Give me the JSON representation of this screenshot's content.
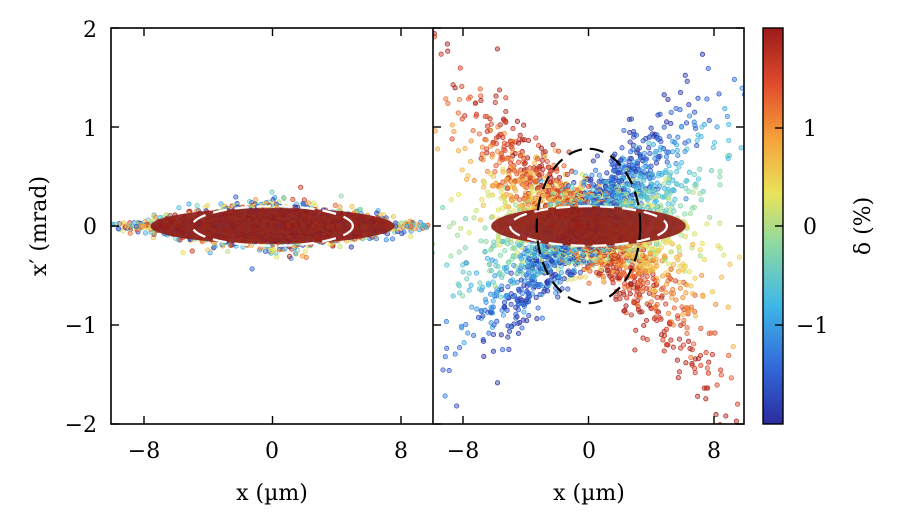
{
  "chart_data": [
    {
      "type": "scatter",
      "panel": "left",
      "xlabel": "x (µm)",
      "ylabel": "x′ (mrad)",
      "xlim": [
        -10,
        10
      ],
      "ylim": [
        -2,
        2
      ],
      "xticks": [
        -8,
        0,
        8
      ],
      "xtick_labels": [
        "−8",
        "0",
        "8"
      ],
      "yticks": [
        -2,
        -1,
        0,
        1,
        2
      ],
      "ytick_labels": [
        "−2",
        "−1",
        "0",
        "1",
        "2"
      ],
      "description_of_distribution": {
        "x_spread_um": 10,
        "xprime_spread_mrad": 0.35,
        "correlation_with_delta": "none (mixed colors)"
      },
      "ellipses": [
        {
          "center": [
            0,
            0
          ],
          "semi_x_um": 5,
          "semi_y_mrad": 0.2,
          "color": "#ffffff",
          "style": "dashed"
        }
      ]
    },
    {
      "type": "scatter",
      "panel": "right",
      "xlabel": "x (µm)",
      "xlim": [
        -10,
        10
      ],
      "ylim": [
        -2,
        2
      ],
      "xticks": [
        -8,
        0,
        8
      ],
      "xtick_labels": [
        "−8",
        "0",
        "8"
      ],
      "description_of_distribution": {
        "x_spread_um": 10,
        "xprime_spread_mrad": 1.8,
        "correlation_with_delta": "x′ sign and tilt vary with δ (chromatic)"
      },
      "ellipses": [
        {
          "center": [
            0,
            0
          ],
          "semi_x_um": 5,
          "semi_y_mrad": 0.2,
          "color": "#ffffff",
          "style": "dashed"
        },
        {
          "center": [
            0,
            0
          ],
          "semi_x_um": 3.3,
          "semi_y_mrad": 0.78,
          "color": "#000000",
          "style": "dashed"
        }
      ]
    }
  ],
  "colorbar": {
    "label": "δ (%)",
    "range": [
      -2,
      2
    ],
    "ticks": [
      1,
      0,
      -1
    ],
    "tick_labels": [
      "1",
      "0",
      "−1"
    ],
    "colormap": "jet",
    "colors": [
      "#2b2c9e",
      "#3267d8",
      "#3fb7e8",
      "#8ad9a3",
      "#e8e35a",
      "#f5a23a",
      "#e04a2c",
      "#9b1b1b"
    ]
  }
}
